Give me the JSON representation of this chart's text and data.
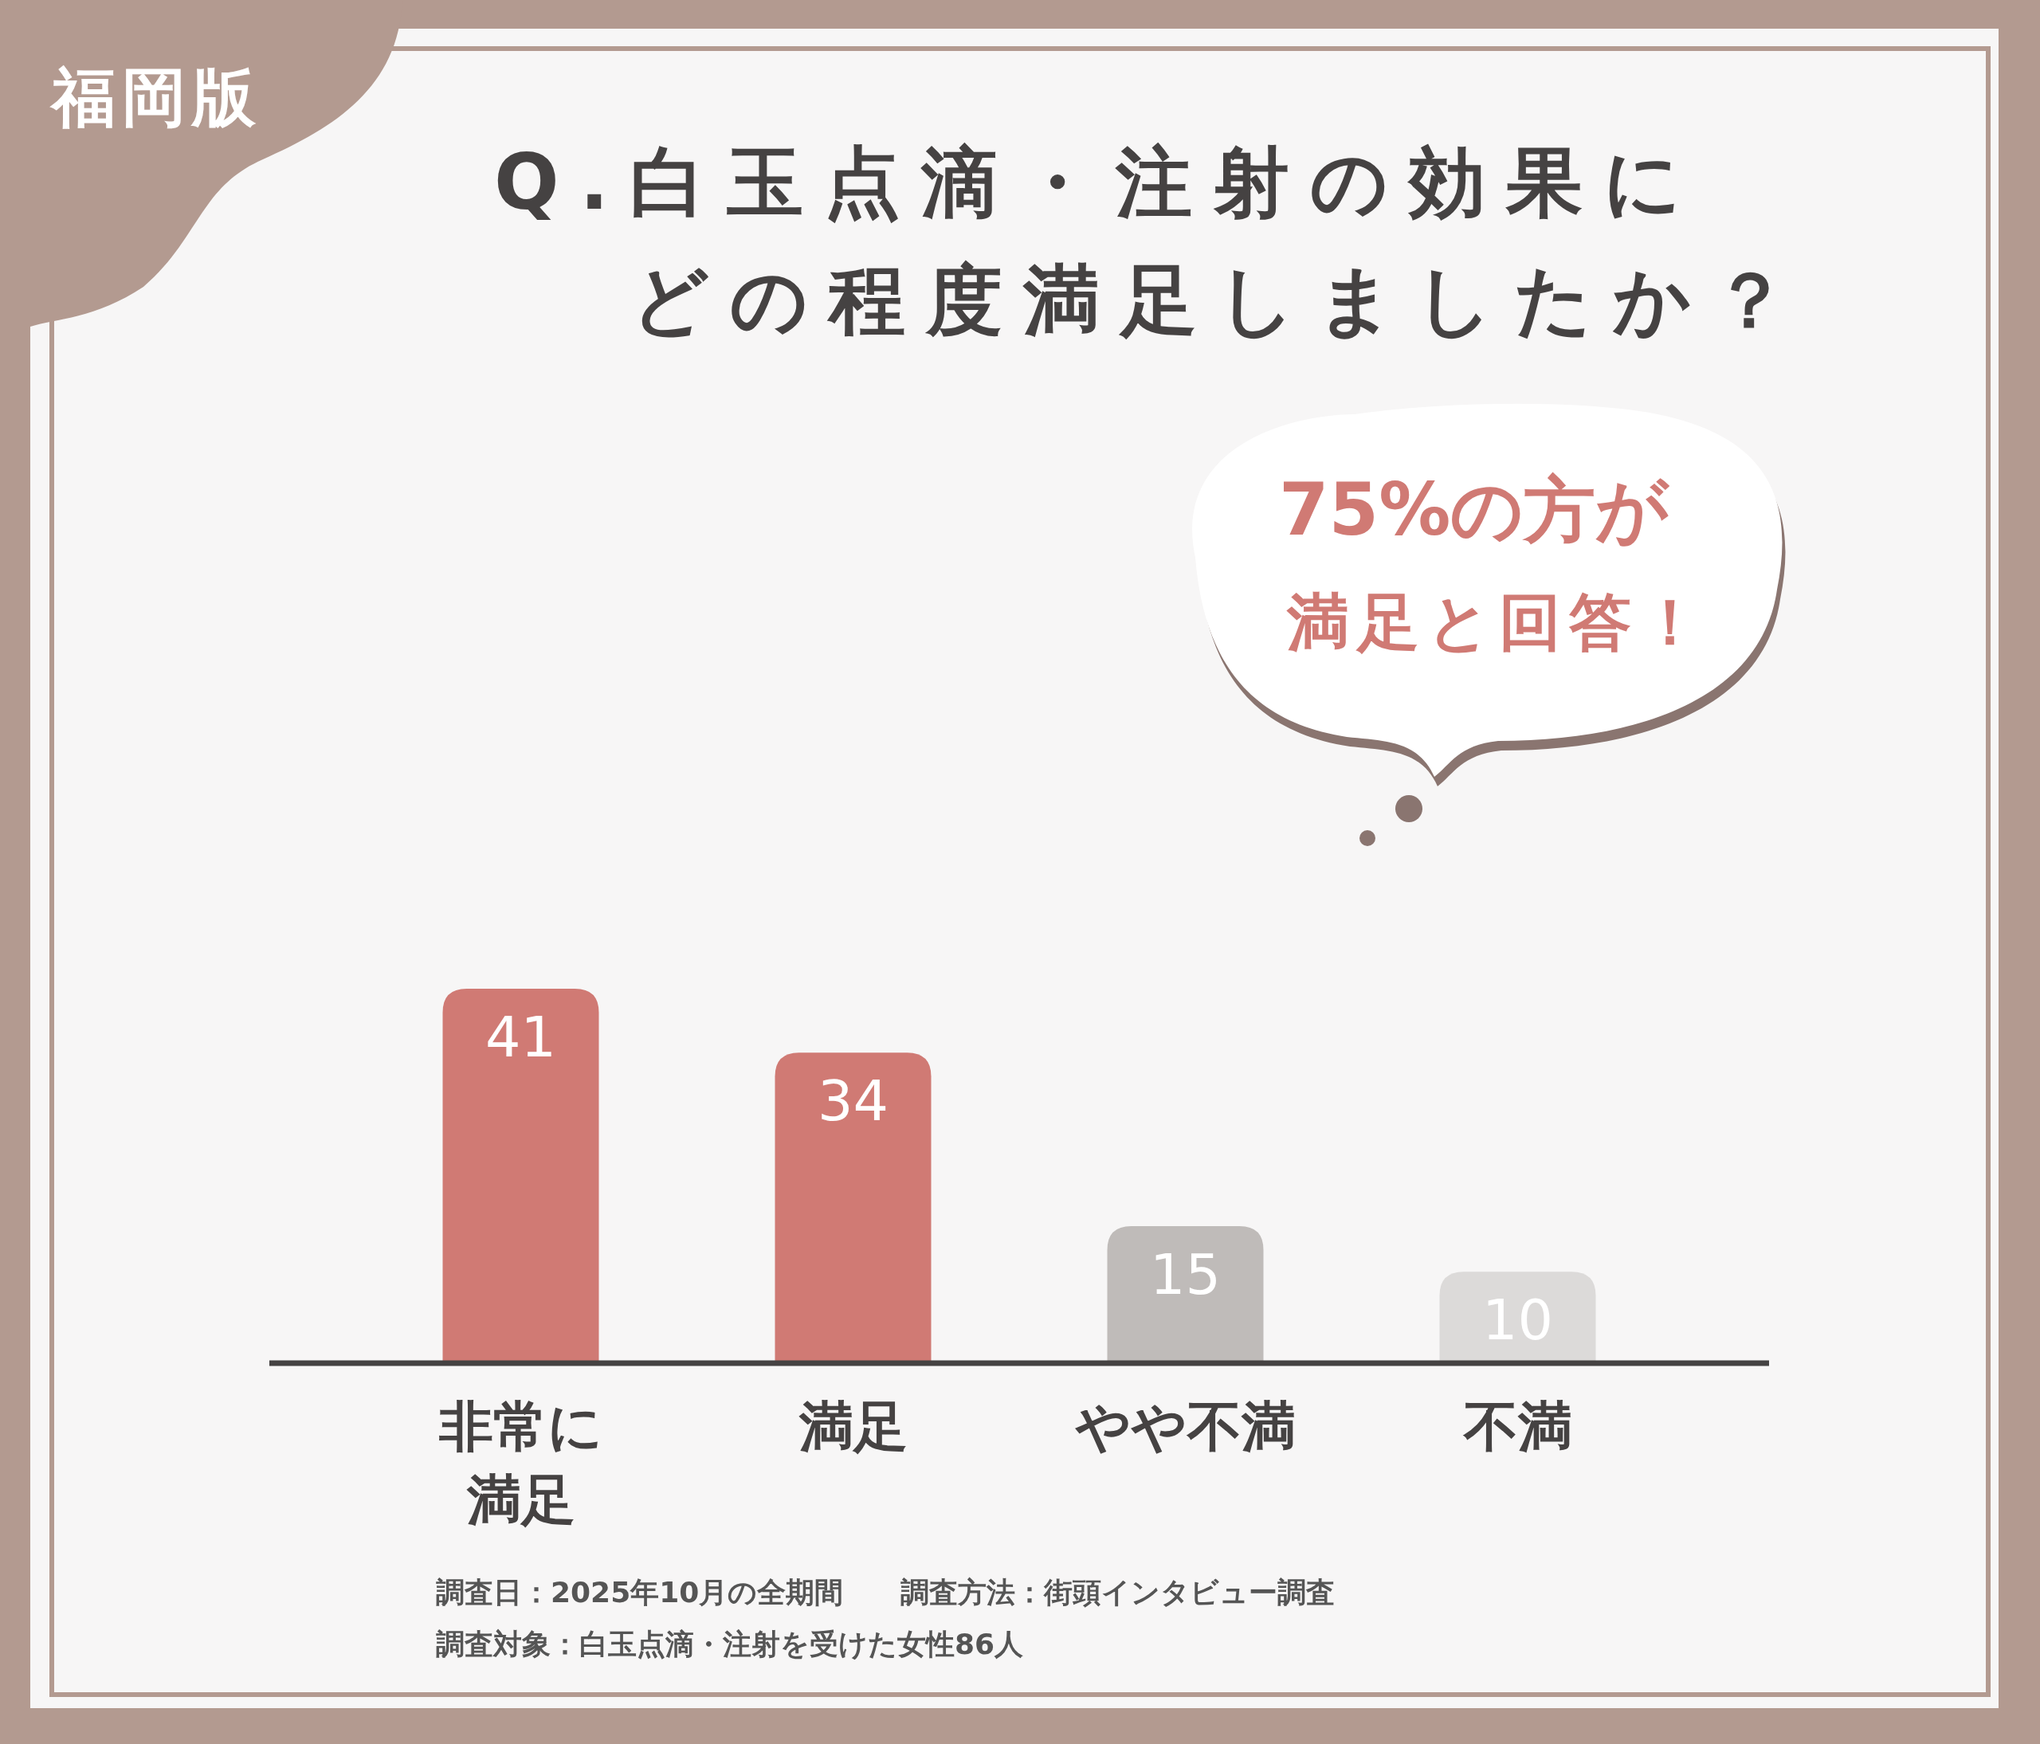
{
  "chart_data": {
    "type": "bar",
    "title": "Q.白玉点滴・注射の効果にどの程度満足しましたか？",
    "categories": [
      "非常に満足",
      "満足",
      "やや不満",
      "不満"
    ],
    "values": [
      41,
      34,
      15,
      10
    ],
    "colors": [
      "#d07a74",
      "#d07a74",
      "#bfbbb9",
      "#dcdad9"
    ],
    "data_labels": true,
    "annotations": [
      "福岡版",
      "75%の方が",
      "満足と回答！",
      "調査日：2025年10月の全期間　　調査方法：街頭インタビュー調査",
      "調査対象：白玉点滴・注射を受けた女性86人"
    ]
  }
}
